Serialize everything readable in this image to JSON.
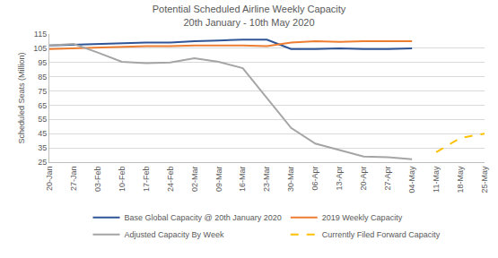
{
  "chart_data": {
    "type": "line",
    "title": "Potential Scheduled Airline Weekly Capacity",
    "subtitle": "20th January - 10th May 2020",
    "y_label": "Scheduled Seats (Million)",
    "categories": [
      "20-Jan",
      "27-Jan",
      "03-Feb",
      "10-Feb",
      "17-Feb",
      "24-Feb",
      "02-Mar",
      "09-Mar",
      "16-Mar",
      "23-Mar",
      "30-Mar",
      "06-Apr",
      "13-Apr",
      "20-Apr",
      "27-Apr",
      "04-May",
      "11-May",
      "18-May",
      "25-May"
    ],
    "series": [
      {
        "name": "Base Global Capacity @ 20th January 2020",
        "color": "#2f5597",
        "line_style": "solid",
        "values": [
          107,
          107.5,
          108,
          108.5,
          109,
          109,
          110,
          110.5,
          111,
          111,
          104.5,
          104.5,
          105,
          104.5,
          104.5,
          105,
          null,
          null,
          null
        ]
      },
      {
        "name": "2019 Weekly Capacity",
        "color": "#ed7d31",
        "line_style": "solid",
        "values": [
          104.5,
          105,
          105.5,
          106,
          106.5,
          106.5,
          107,
          107,
          107,
          106.5,
          109,
          110,
          109.5,
          110,
          110,
          110,
          null,
          null,
          null
        ]
      },
      {
        "name": "Adjusted Capacity By Week",
        "color": "#a5a5a5",
        "line_style": "solid",
        "values": [
          107,
          108,
          102,
          95.5,
          94.5,
          95,
          98,
          95.5,
          91,
          70,
          49,
          38,
          33.5,
          29,
          28.5,
          27,
          null,
          null,
          null
        ]
      },
      {
        "name": "Currently Filed Forward Capacity",
        "color": "#ffc000",
        "line_style": "dash",
        "values": [
          null,
          null,
          null,
          null,
          null,
          null,
          null,
          null,
          null,
          null,
          null,
          null,
          null,
          null,
          null,
          null,
          32,
          42,
          45
        ]
      }
    ],
    "ylim": [
      25,
      115
    ],
    "yticks": [
      25,
      35,
      45,
      55,
      65,
      75,
      85,
      95,
      105,
      115
    ],
    "grid": true,
    "legend": "bottom"
  }
}
